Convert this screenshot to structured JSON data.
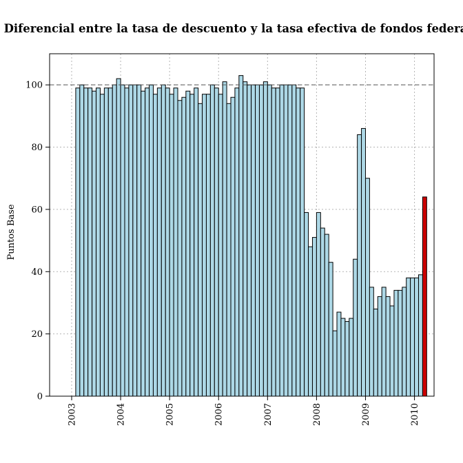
{
  "chart_data": {
    "type": "bar",
    "title": "Diferencial entre la tasa de descuento y la tasa efectiva de fondos federales",
    "xlabel": "",
    "ylabel": "Puntos Base",
    "ylim": [
      0,
      110
    ],
    "xlim": [
      2002.55,
      2010.4
    ],
    "y_ticks": [
      0,
      20,
      40,
      60,
      80,
      100
    ],
    "x_ticks": [
      "2003",
      "2004",
      "2005",
      "2006",
      "2007",
      "2008",
      "2009",
      "2010"
    ],
    "x_tick_values": [
      2003,
      2004,
      2005,
      2006,
      2007,
      2008,
      2009,
      2010
    ],
    "reference_line": 100,
    "grid": true,
    "colors": {
      "bar": "#add8e6",
      "highlight": "#cc0000",
      "outline": "#000000",
      "grid": "#b3b3b3"
    },
    "series": [
      {
        "start": "2003-02",
        "values": [
          99,
          100,
          99,
          99,
          98,
          99,
          97,
          99,
          99,
          100,
          102,
          100,
          99,
          100,
          100,
          100,
          98,
          99,
          100,
          97,
          99,
          100,
          99,
          97,
          99,
          95,
          96,
          98,
          97,
          99,
          94,
          97,
          97,
          100,
          99,
          97,
          101,
          94,
          96,
          99,
          103,
          101,
          100,
          100,
          100,
          100,
          101,
          100,
          99,
          99,
          100,
          100,
          100,
          100,
          99,
          99,
          59,
          48,
          51,
          59,
          54,
          52,
          43,
          21,
          27,
          25,
          24,
          25,
          44,
          84,
          86,
          70,
          35,
          28,
          32,
          35,
          32,
          29,
          34,
          34,
          35,
          38,
          38,
          38,
          39
        ]
      },
      {
        "start": "2010-03",
        "highlight": true,
        "values": [
          64
        ]
      }
    ]
  }
}
